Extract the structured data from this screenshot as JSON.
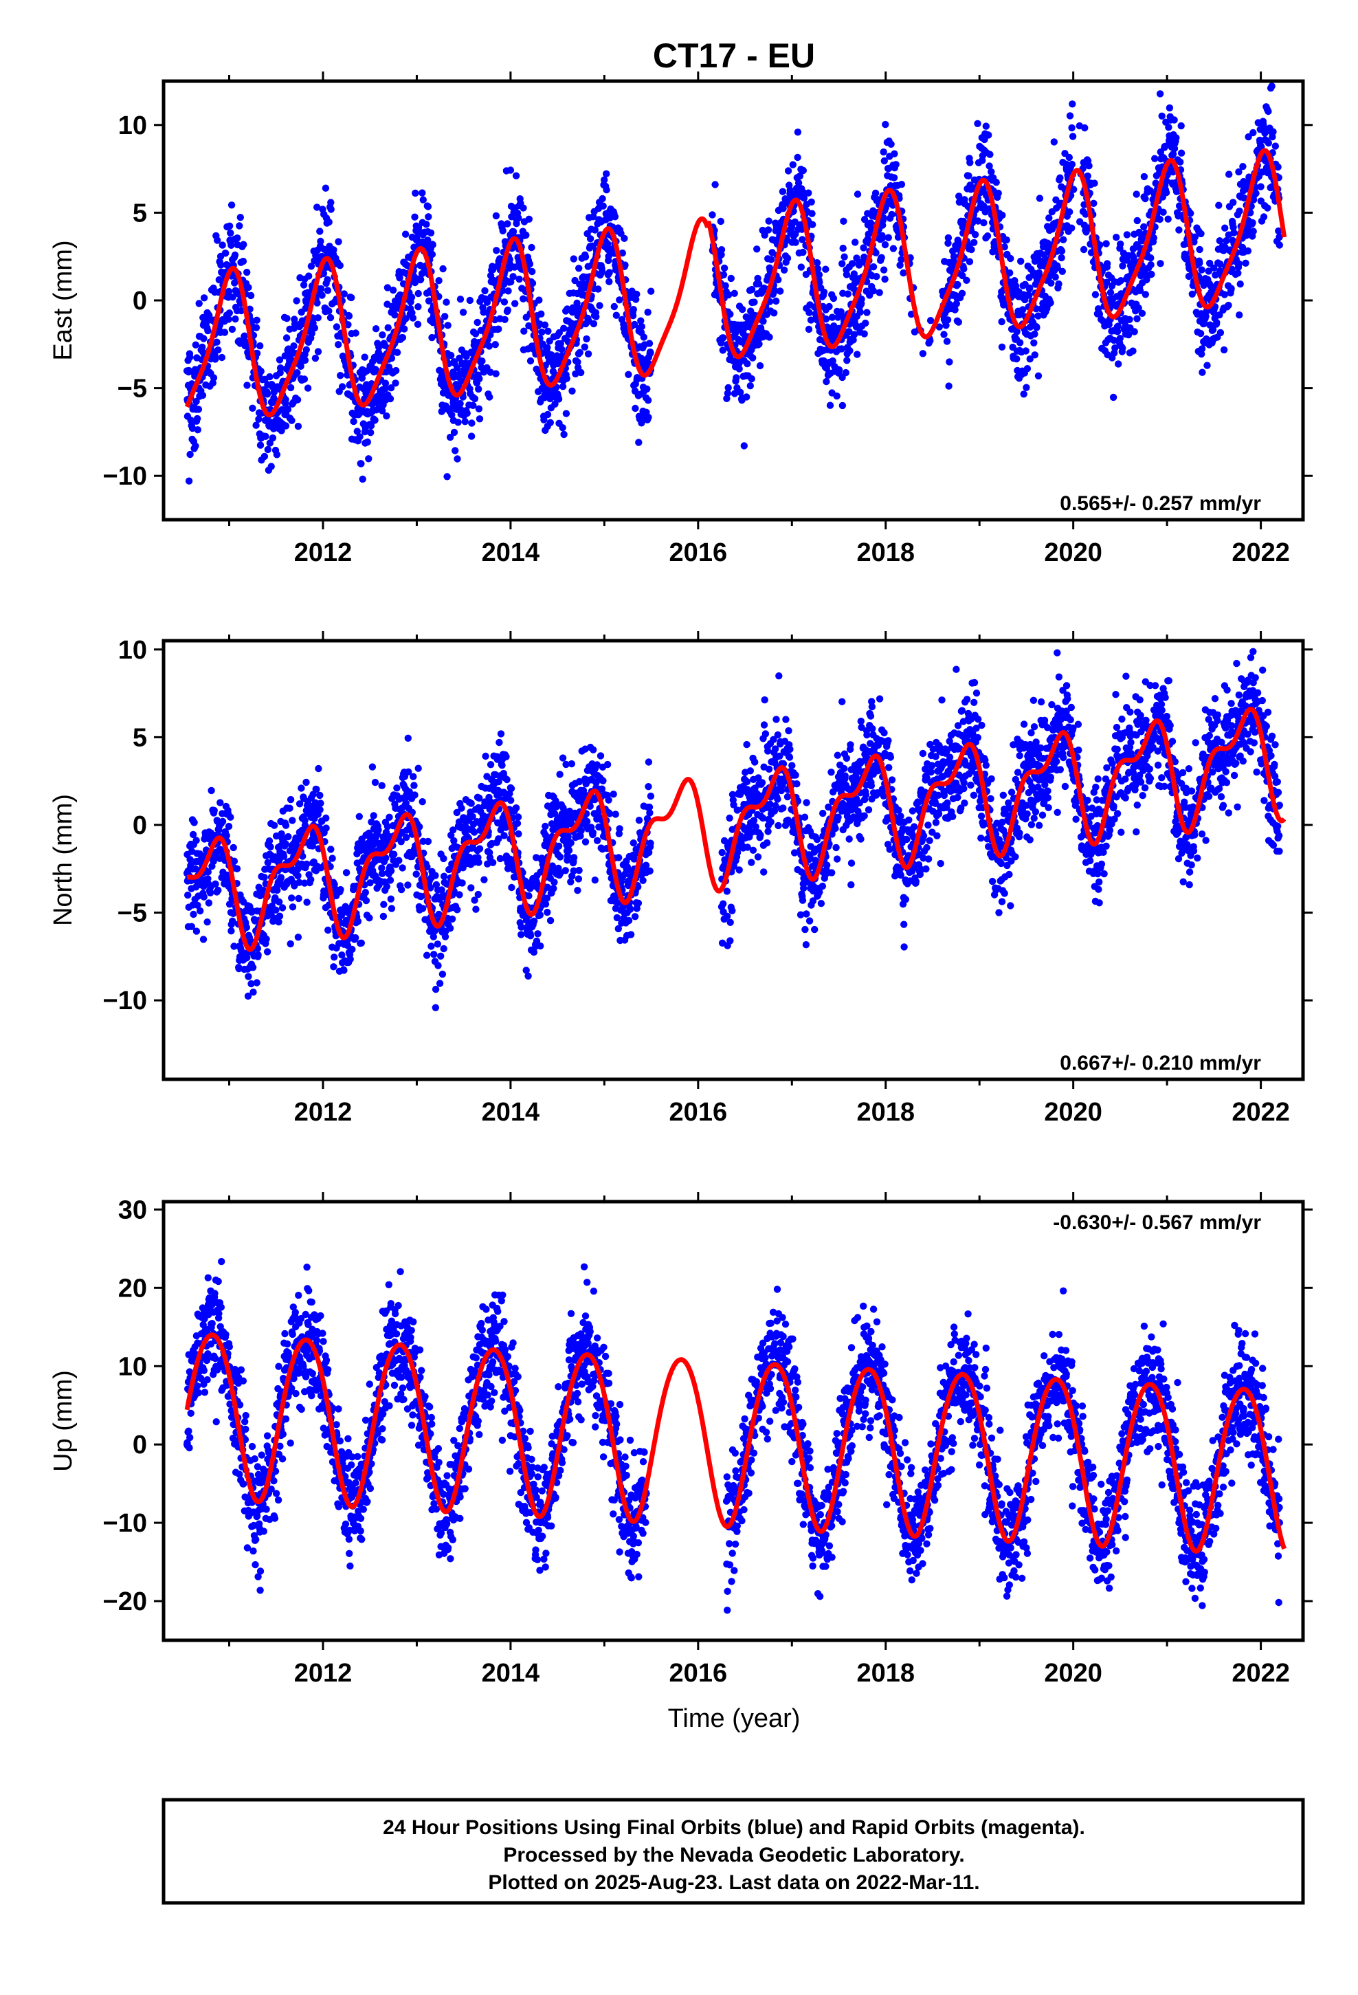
{
  "title": "CT17 - EU",
  "colors": {
    "data": "#0000ff",
    "model": "#ff0000",
    "frame": "#000000"
  },
  "chart_data": [
    {
      "type": "scatter",
      "series_label": "East",
      "ylabel": "East (mm)",
      "xlabel": "",
      "xlim": [
        2010.3,
        2022.45
      ],
      "ylim": [
        -12.5,
        12.5
      ],
      "xticks": [
        2012,
        2014,
        2016,
        2018,
        2020,
        2022
      ],
      "yticks": [
        -10,
        -5,
        0,
        5,
        10
      ],
      "rate_text": "0.565+/- 0.257 mm/yr",
      "rate_position": "bottom-right",
      "model": {
        "slope": 0.565,
        "value_at_2016": 0.5,
        "amp1": 4.0,
        "phase1": 1.57,
        "amp2": 0.9,
        "phase2": 0.5,
        "offsets": [
          [
            2016.1,
            0.5
          ]
        ]
      },
      "scatter": {
        "start": 2010.55,
        "end": 2022.2,
        "noise": 1.6,
        "gap": [
          2015.5,
          2016.15
        ],
        "sparse": [
          [
            2018.2,
            2018.6
          ],
          [
            2020.0,
            2020.1
          ]
        ]
      }
    },
    {
      "type": "scatter",
      "series_label": "North",
      "ylabel": "North (mm)",
      "xlabel": "",
      "xlim": [
        2010.3,
        2022.45
      ],
      "ylim": [
        -14.5,
        10.5
      ],
      "xticks": [
        2012,
        2014,
        2016,
        2018,
        2020,
        2022
      ],
      "yticks": [
        -10,
        -5,
        0,
        5,
        10
      ],
      "rate_text": "0.667+/- 0.210 mm/yr",
      "rate_position": "bottom-right",
      "model": {
        "slope": 0.667,
        "value_at_2016": -0.2,
        "amp1": 2.6,
        "phase1": 3.0,
        "amp2": 1.3,
        "phase2": 2.2,
        "offsets": []
      },
      "scatter": {
        "start": 2010.55,
        "end": 2022.2,
        "noise": 1.5,
        "gap": [
          2015.5,
          2016.25
        ],
        "sparse": []
      }
    },
    {
      "type": "scatter",
      "series_label": "Up",
      "ylabel": "Up (mm)",
      "xlabel": "Time (year)",
      "xlim": [
        2010.3,
        2022.45
      ],
      "ylim": [
        -25,
        31
      ],
      "xticks": [
        2012,
        2014,
        2016,
        2018,
        2020,
        2022
      ],
      "yticks": [
        -20,
        -10,
        0,
        10,
        20,
        30
      ],
      "rate_text": "-0.630+/- 0.567 mm/yr",
      "rate_position": "top-right",
      "model": {
        "slope": -0.63,
        "value_at_2016": 1.0,
        "amp1": 10.5,
        "phase1": 2.75,
        "amp2": 0.8,
        "phase2": 1.0,
        "offsets": []
      },
      "scatter": {
        "start": 2010.55,
        "end": 2022.2,
        "noise": 3.4,
        "gap": [
          2015.45,
          2016.3
        ],
        "sparse": []
      }
    }
  ],
  "caption": {
    "line1": "24 Hour Positions Using Final Orbits (blue) and Rapid Orbits (magenta).",
    "line2": "Processed by the Nevada Geodetic Laboratory.",
    "line3": "Plotted on 2025-Aug-23. Last data on 2022-Mar-11."
  }
}
